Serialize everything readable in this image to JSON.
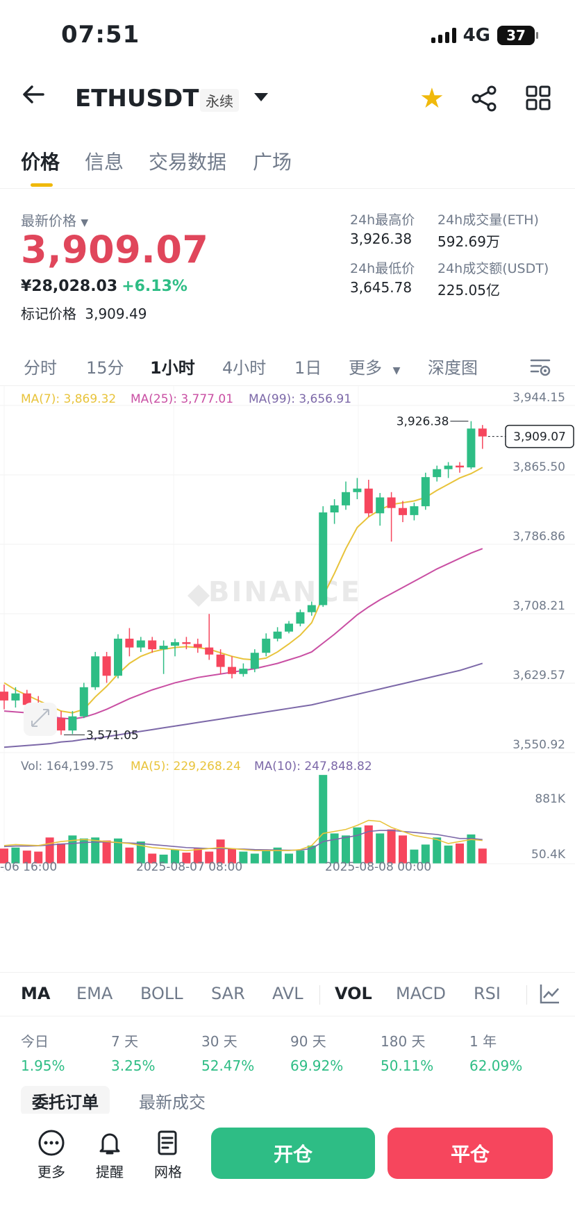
{
  "status": {
    "time": "07:51",
    "network": "4G",
    "battery": "37"
  },
  "header": {
    "symbol": "ETHUSDT",
    "contract": "永续",
    "star_icon": "star-icon",
    "share_icon": "share-icon",
    "grid_icon": "grid-icon"
  },
  "tabs": [
    {
      "label": "价格",
      "active": true
    },
    {
      "label": "信息"
    },
    {
      "label": "交易数据"
    },
    {
      "label": "广场"
    }
  ],
  "price": {
    "last_label": "最新价格",
    "last": "3,909.07",
    "cny": "¥28,028.03",
    "change": "+6.13%",
    "mark_label": "标记价格",
    "mark": "3,909.49"
  },
  "stats": {
    "high_label": "24h最高价",
    "high": "3,926.38",
    "vol_eth_label": "24h成交量(ETH)",
    "vol_eth": "592.69万",
    "low_label": "24h最低价",
    "low": "3,645.78",
    "vol_usdt_label": "24h成交额(USDT)",
    "vol_usdt": "225.05亿"
  },
  "intervals": [
    {
      "label": "分时"
    },
    {
      "label": "15分"
    },
    {
      "label": "1小时",
      "active": true
    },
    {
      "label": "4小时"
    },
    {
      "label": "1日"
    },
    {
      "label": "更多"
    },
    {
      "label": "深度图"
    }
  ],
  "chart_data": {
    "type": "candlestick",
    "ma_labels": {
      "ma7": "MA(7): 3,869.32",
      "ma25": "MA(25): 3,777.01",
      "ma99": "MA(99): 3,656.91"
    },
    "y_ticks": [
      "3,944.15",
      "3,865.50",
      "3,786.86",
      "3,708.21",
      "3,629.57",
      "3,550.92"
    ],
    "ylim": [
      3550.92,
      3944.15
    ],
    "current_price": "3,909.07",
    "high_marker": "3,926.38",
    "low_marker": "3,571.05",
    "watermark": "BINANCE",
    "candles": [
      [
        3620,
        3628,
        3600,
        3610
      ],
      [
        3610,
        3625,
        3602,
        3618
      ],
      [
        3618,
        3622,
        3598,
        3605
      ],
      [
        3605,
        3615,
        3590,
        3596
      ],
      [
        3596,
        3606,
        3585,
        3590
      ],
      [
        3590,
        3598,
        3571,
        3576
      ],
      [
        3576,
        3598,
        3572,
        3592
      ],
      [
        3592,
        3630,
        3590,
        3625
      ],
      [
        3625,
        3665,
        3622,
        3660
      ],
      [
        3660,
        3665,
        3630,
        3638
      ],
      [
        3638,
        3685,
        3635,
        3680
      ],
      [
        3680,
        3692,
        3660,
        3670
      ],
      [
        3670,
        3682,
        3665,
        3678
      ],
      [
        3678,
        3682,
        3664,
        3668
      ],
      [
        3668,
        3678,
        3640,
        3672
      ],
      [
        3672,
        3680,
        3660,
        3676
      ],
      [
        3676,
        3682,
        3668,
        3674
      ],
      [
        3674,
        3680,
        3664,
        3670
      ],
      [
        3670,
        3708,
        3656,
        3662
      ],
      [
        3662,
        3668,
        3640,
        3648
      ],
      [
        3648,
        3660,
        3635,
        3640
      ],
      [
        3640,
        3652,
        3637,
        3646
      ],
      [
        3646,
        3668,
        3642,
        3664
      ],
      [
        3664,
        3686,
        3660,
        3680
      ],
      [
        3680,
        3693,
        3677,
        3688
      ],
      [
        3688,
        3700,
        3686,
        3697
      ],
      [
        3697,
        3713,
        3694,
        3710
      ],
      [
        3710,
        3722,
        3706,
        3718
      ],
      [
        3718,
        3830,
        3716,
        3823
      ],
      [
        3823,
        3838,
        3810,
        3831
      ],
      [
        3831,
        3858,
        3826,
        3846
      ],
      [
        3846,
        3862,
        3838,
        3850
      ],
      [
        3850,
        3860,
        3818,
        3822
      ],
      [
        3822,
        3845,
        3808,
        3840
      ],
      [
        3840,
        3846,
        3790,
        3828
      ],
      [
        3828,
        3836,
        3812,
        3820
      ],
      [
        3820,
        3834,
        3814,
        3830
      ],
      [
        3830,
        3868,
        3826,
        3863
      ],
      [
        3863,
        3876,
        3858,
        3872
      ],
      [
        3872,
        3880,
        3862,
        3876
      ],
      [
        3876,
        3880,
        3868,
        3874
      ],
      [
        3874,
        3926.38,
        3872,
        3918
      ],
      [
        3918,
        3922,
        3895,
        3909.07
      ]
    ],
    "ma7": [
      3630,
      3622,
      3616,
      3610,
      3604,
      3598,
      3596,
      3600,
      3614,
      3626,
      3640,
      3652,
      3660,
      3665,
      3668,
      3670,
      3671,
      3670,
      3668,
      3664,
      3660,
      3657,
      3656,
      3658,
      3665,
      3674,
      3684,
      3698,
      3728,
      3754,
      3782,
      3806,
      3818,
      3826,
      3832,
      3834,
      3836,
      3840,
      3848,
      3855,
      3862,
      3867,
      3874
    ],
    "ma25": [
      3598,
      3597,
      3596,
      3594,
      3592,
      3590,
      3589,
      3591,
      3595,
      3600,
      3606,
      3612,
      3617,
      3622,
      3626,
      3630,
      3633,
      3636,
      3638,
      3640,
      3642,
      3644,
      3646,
      3649,
      3652,
      3656,
      3660,
      3665,
      3675,
      3685,
      3696,
      3707,
      3716,
      3724,
      3731,
      3738,
      3745,
      3752,
      3759,
      3765,
      3771,
      3777,
      3782
    ],
    "ma99": [
      3557,
      3558,
      3559,
      3560,
      3561,
      3563,
      3564,
      3566,
      3567,
      3569,
      3571,
      3573,
      3575,
      3577,
      3579,
      3581,
      3583,
      3585,
      3587,
      3589,
      3591,
      3593,
      3595,
      3597,
      3599,
      3601,
      3603,
      3605,
      3608,
      3611,
      3614,
      3617,
      3620,
      3623,
      3626,
      3629,
      3632,
      3635,
      3638,
      3641,
      3644,
      3648,
      3652
    ],
    "volume": {
      "label": "Vol: 164,199.75",
      "ma5_label": "MA(5): 229,268.24",
      "ma10_label": "MA(10): 247,848.82",
      "max_tick": "881K",
      "min_tick": "50.4K",
      "ylim": [
        0,
        881000
      ],
      "values": [
        150000,
        160000,
        130000,
        120000,
        260000,
        200000,
        280000,
        250000,
        260000,
        230000,
        250000,
        160000,
        220000,
        100000,
        90000,
        140000,
        110000,
        150000,
        120000,
        240000,
        150000,
        120000,
        100000,
        130000,
        160000,
        100000,
        130000,
        180000,
        880000,
        300000,
        280000,
        360000,
        380000,
        300000,
        340000,
        280000,
        140000,
        190000,
        260000,
        180000,
        200000,
        290000,
        150000
      ],
      "ma5": [
        180000,
        190000,
        185000,
        180000,
        200000,
        220000,
        230000,
        240000,
        230000,
        220000,
        210000,
        200000,
        180000,
        160000,
        150000,
        140000,
        130000,
        140000,
        150000,
        160000,
        150000,
        140000,
        130000,
        130000,
        130000,
        130000,
        140000,
        180000,
        300000,
        320000,
        340000,
        380000,
        430000,
        420000,
        360000,
        320000,
        280000,
        260000,
        240000,
        200000,
        220000,
        240000,
        230000
      ],
      "ma10": [
        170000,
        175000,
        175000,
        178000,
        185000,
        195000,
        200000,
        210000,
        215000,
        215000,
        210000,
        205000,
        200000,
        190000,
        180000,
        170000,
        160000,
        155000,
        150000,
        150000,
        148000,
        145000,
        140000,
        138000,
        136000,
        134000,
        135000,
        150000,
        220000,
        240000,
        260000,
        280000,
        320000,
        330000,
        330000,
        320000,
        310000,
        300000,
        290000,
        270000,
        250000,
        250000,
        240000
      ]
    },
    "x_labels": [
      "-06 16:00",
      "2025-08-07 08:00",
      "2025-08-08 00:00"
    ]
  },
  "indicators": [
    {
      "label": "MA",
      "active": true
    },
    {
      "label": "EMA"
    },
    {
      "label": "BOLL"
    },
    {
      "label": "SAR"
    },
    {
      "label": "AVL"
    },
    {
      "label": "VOL",
      "active": true
    },
    {
      "label": "MACD"
    },
    {
      "label": "RSI"
    }
  ],
  "performance": [
    {
      "period": "今日",
      "value": "1.95%"
    },
    {
      "period": "7 天",
      "value": "3.25%"
    },
    {
      "period": "30 天",
      "value": "52.47%"
    },
    {
      "period": "90 天",
      "value": "69.92%"
    },
    {
      "period": "180 天",
      "value": "50.11%"
    },
    {
      "period": "1 年",
      "value": "62.09%"
    }
  ],
  "order_tabs": [
    {
      "label": "委托订单",
      "active": true
    },
    {
      "label": "最新成交"
    }
  ],
  "bottom": {
    "more": "更多",
    "alert": "提醒",
    "grid": "网格",
    "open": "开仓",
    "close": "平仓"
  },
  "colors": {
    "up": "#2ebd85",
    "down": "#f6465d",
    "ma7": "#e8c33a",
    "ma25": "#c94fa3",
    "ma99": "#7c68a8",
    "accent": "#f0b90b"
  }
}
